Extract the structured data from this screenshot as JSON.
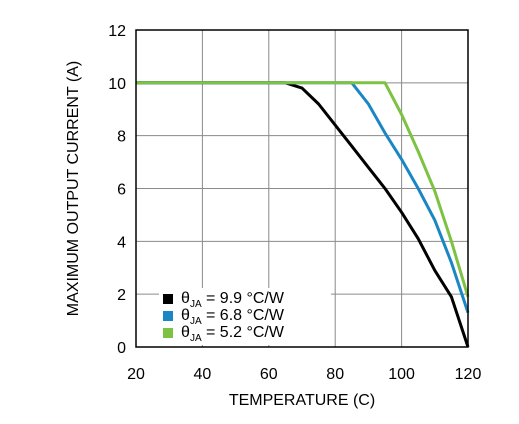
{
  "chart_data": {
    "type": "line",
    "xlabel": "TEMPERATURE (C)",
    "ylabel": "MAXIMUM OUTPUT CURRENT (A)",
    "xlim": [
      20,
      120
    ],
    "ylim": [
      0,
      12
    ],
    "xticks": [
      "20",
      "40",
      "60",
      "80",
      "100",
      "120"
    ],
    "yticks": [
      "0",
      "2",
      "4",
      "6",
      "8",
      "10",
      "12"
    ],
    "grid": true,
    "legend_position": "bottom-left",
    "series": [
      {
        "symbol": "θ",
        "subscript": "JA",
        "value_text": "= 9.9 °C/W",
        "color": "#000000",
        "x": [
          20,
          65,
          70,
          75,
          80,
          85,
          90,
          95,
          100,
          105,
          110,
          115,
          120
        ],
        "y": [
          10,
          10,
          9.8,
          9.2,
          8.4,
          7.6,
          6.8,
          6.0,
          5.1,
          4.1,
          2.9,
          1.9,
          0
        ]
      },
      {
        "symbol": "θ",
        "subscript": "JA",
        "value_text": "= 6.8 °C/W",
        "color": "#1a87c4",
        "x": [
          20,
          85,
          90,
          95,
          100,
          105,
          110,
          115,
          120
        ],
        "y": [
          10,
          10,
          9.2,
          8.1,
          7.1,
          6.0,
          4.8,
          3.2,
          1.3
        ]
      },
      {
        "symbol": "θ",
        "subscript": "JA",
        "value_text": "= 5.2 °C/W",
        "color": "#7dc242",
        "x": [
          20,
          95,
          100,
          105,
          110,
          115,
          120
        ],
        "y": [
          10,
          10,
          8.8,
          7.4,
          5.9,
          4.0,
          1.9
        ]
      }
    ]
  }
}
